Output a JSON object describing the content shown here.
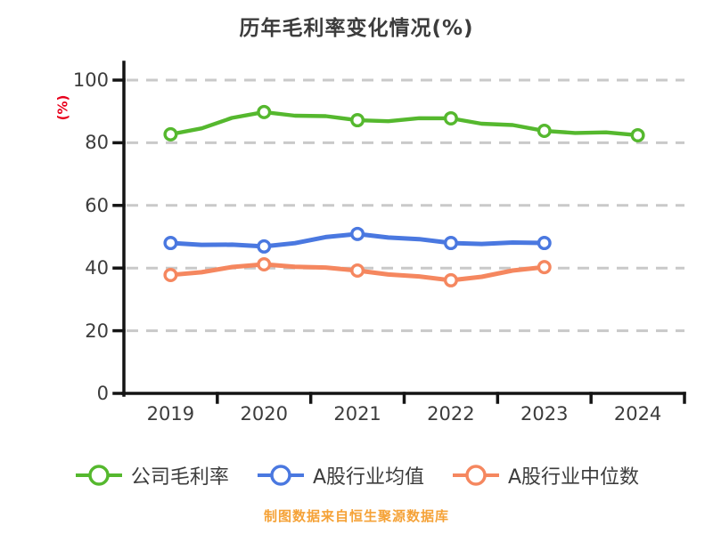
{
  "title": "历年毛利率变化情况(%)",
  "y_axis_label": "(%)",
  "footer_note": "制图数据来自恒生聚源数据库",
  "colors": {
    "background": "#ffffff",
    "title_text": "#3c3c3c",
    "tick_text": "#3c3c3c",
    "axis": "#141414",
    "grid": "#c9c9c9",
    "ylabel_text": "#e8001c",
    "footer_text": "#f5a237",
    "marker_fill": "#ffffff"
  },
  "chart_data": {
    "type": "line",
    "style": "hand-drawn sketch (xkcd-like), circle markers with white fill",
    "title": "历年毛利率变化情况(%)",
    "xlabel": "",
    "ylabel": "(%)",
    "categories": [
      "2019",
      "2020",
      "2021",
      "2022",
      "2023",
      "2024"
    ],
    "series": [
      {
        "name": "公司毛利率",
        "color": "#55b82e",
        "values": [
          82.7,
          89.8,
          87.2,
          87.8,
          83.8,
          82.4
        ]
      },
      {
        "name": "A股行业均值",
        "color": "#4a78e0",
        "values": [
          48.0,
          46.9,
          50.9,
          48.0,
          48.0,
          null
        ]
      },
      {
        "name": "A股行业中位数",
        "color": "#f5875f",
        "values": [
          37.8,
          41.2,
          39.2,
          36.1,
          40.3,
          null
        ]
      }
    ],
    "ylim": [
      0,
      100
    ],
    "yticks": [
      0,
      20,
      40,
      60,
      80,
      100
    ],
    "grid": "horizontal dashed lines at each y tick",
    "legend_position": "bottom"
  }
}
